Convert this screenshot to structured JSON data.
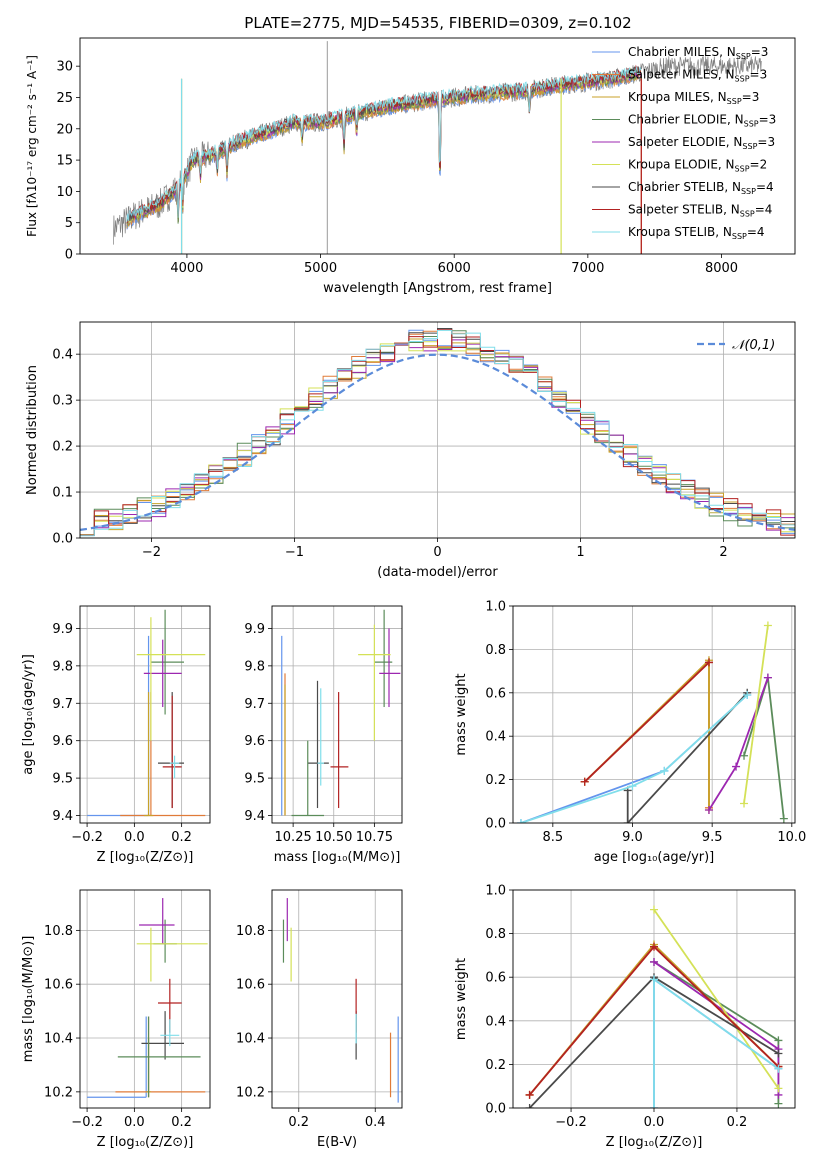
{
  "title": "PLATE=2775, MJD=54535, FIBERID=0309, z=0.102",
  "colors": [
    "#6495ED",
    "#E07B39",
    "#C8A22A",
    "#5B8C5A",
    "#9C27B0",
    "#D4E157",
    "#4A4A4A",
    "#B22222",
    "#80DEEA"
  ],
  "chart_data": [
    {
      "panel": "spectrum",
      "type": "line",
      "xlabel": "wavelength [Angstrom, rest frame]",
      "ylabel": "Flux [fλ10⁻¹⁷ erg cm⁻² s⁻¹ A⁻¹]",
      "xlim": [
        3200,
        8550
      ],
      "ylim": [
        0,
        34.5
      ],
      "xticks": [
        4000,
        5000,
        6000,
        7000,
        8000
      ],
      "yticks": [
        0,
        5,
        10,
        15,
        20,
        25,
        30
      ],
      "grid": false,
      "legend_position": "right",
      "legend": [
        "Chabrier MILES, N_SSP=3",
        "Salpeter MILES, N_SSP=3",
        "Kroupa MILES, N_SSP=3",
        "Chabrier ELODIE, N_SSP=3",
        "Salpeter ELODIE, N_SSP=3",
        "Kroupa ELODIE, N_SSP=2",
        "Chabrier STELIB, N_SSP=4",
        "Salpeter STELIB, N_SSP=4",
        "Kroupa STELIB, N_SSP=4"
      ],
      "continuum": {
        "x": [
          3450,
          3600,
          3800,
          3950,
          4050,
          4200,
          4300,
          4400,
          4600,
          4800,
          5000,
          5200,
          5500,
          5800,
          6000,
          6200,
          6500,
          6800,
          7000,
          7200,
          7400,
          7600,
          8000,
          8300
        ],
        "y": [
          4,
          6,
          8,
          11,
          15,
          16,
          17,
          18,
          19.5,
          21,
          21,
          22,
          23.5,
          24.5,
          25,
          25.5,
          26,
          27,
          27.5,
          28,
          29,
          30,
          30,
          30
        ]
      },
      "data_extent": [
        3450,
        8300
      ],
      "model_extent": [
        3550,
        7400
      ],
      "absorption": [
        {
          "x": 3934,
          "depth": 5
        },
        {
          "x": 3969,
          "depth": 4
        },
        {
          "x": 4101,
          "depth": 3
        },
        {
          "x": 4227,
          "depth": 3
        },
        {
          "x": 4300,
          "depth": 4
        },
        {
          "x": 4861,
          "depth": 3
        },
        {
          "x": 5175,
          "depth": 5
        },
        {
          "x": 5270,
          "depth": 3
        },
        {
          "x": 5893,
          "depth": 14
        },
        {
          "x": 6563,
          "depth": 4
        }
      ],
      "spikes": [
        {
          "x": 5050,
          "y": 34
        }
      ],
      "model_drops": [
        {
          "x": 6800,
          "series": 5
        },
        {
          "x": 7400,
          "series": 1
        },
        {
          "x": 7400,
          "series": 7
        },
        {
          "x": 3960,
          "series": 2
        },
        {
          "x": 3960,
          "series": 8
        }
      ]
    },
    {
      "panel": "residuals",
      "type": "histogram",
      "xlabel": "(data-model)/error",
      "ylabel": "Normed distribution",
      "xlim": [
        -2.5,
        2.5
      ],
      "ylim": [
        0,
        0.47
      ],
      "xticks": [
        -2,
        -1,
        0,
        1,
        2
      ],
      "yticks": [
        0.0,
        0.1,
        0.2,
        0.3,
        0.4
      ],
      "grid": true,
      "legend_position": "top-right",
      "reference_label": "𝒩(0,1)",
      "bin_width": 0.1,
      "offsets": [
        0,
        0.01,
        -0.01,
        0.015,
        -0.015,
        0.02,
        -0.005,
        0.005,
        -0.02
      ]
    },
    {
      "panel": "age_vs_Z",
      "type": "errorbar",
      "xlabel": "Z [log₁₀(Z/Z⊙)]",
      "ylabel": "age  [log₁₀(age/yr)]",
      "xlim": [
        -0.23,
        0.32
      ],
      "ylim": [
        9.38,
        9.96
      ],
      "xticks": [
        -0.2,
        0.0,
        0.2
      ],
      "xticklabels": [
        "−0.2",
        "0.0",
        "0.2"
      ],
      "yticks": [
        9.4,
        9.5,
        9.6,
        9.7,
        9.8,
        9.9
      ],
      "grid": true,
      "points": [
        {
          "x": 0.06,
          "y": 9.4,
          "xerr": [
            0.26,
            0.0
          ],
          "yerr": [
            0.0,
            0.48
          ],
          "series": 0
        },
        {
          "x": 0.07,
          "y": 9.4,
          "xerr": [
            0.13,
            0.23
          ],
          "yerr": [
            0.0,
            0.33
          ],
          "series": 1
        },
        {
          "x": 0.06,
          "y": 9.4,
          "xerr": [
            0.02,
            0.02
          ],
          "yerr": [
            0.0,
            0.33
          ],
          "series": 2
        },
        {
          "x": 0.13,
          "y": 9.81,
          "xerr": [
            0.06,
            0.08
          ],
          "yerr": [
            0.14,
            0.14
          ],
          "series": 3
        },
        {
          "x": 0.12,
          "y": 9.78,
          "xerr": [
            0.08,
            0.08
          ],
          "yerr": [
            0.09,
            0.09
          ],
          "series": 4
        },
        {
          "x": 0.07,
          "y": 9.83,
          "xerr": [
            0.06,
            0.23
          ],
          "yerr": [
            0.23,
            0.1
          ],
          "series": 5
        },
        {
          "x": 0.16,
          "y": 9.54,
          "xerr": [
            0.06,
            0.05
          ],
          "yerr": [
            0.12,
            0.19
          ],
          "series": 6
        },
        {
          "x": 0.16,
          "y": 9.53,
          "xerr": [
            0.04,
            0.04
          ],
          "yerr": [
            0.11,
            0.19
          ],
          "series": 7
        },
        {
          "x": 0.17,
          "y": 9.54,
          "xerr": [
            0.02,
            0.02
          ],
          "yerr": [
            0.04,
            0.02
          ],
          "series": 8
        }
      ]
    },
    {
      "panel": "age_vs_mass",
      "type": "errorbar",
      "xlabel": "mass [log₁₀(M/M⊙)]",
      "ylabel": "",
      "xlim": [
        10.12,
        10.92
      ],
      "ylim": [
        9.38,
        9.96
      ],
      "xticks": [
        10.25,
        10.5,
        10.75
      ],
      "xticklabels": [
        "10.25",
        "10.50",
        "10.75"
      ],
      "yticks": [
        9.4,
        9.5,
        9.6,
        9.7,
        9.8,
        9.9
      ],
      "grid": true,
      "points": [
        {
          "x": 10.18,
          "y": 9.4,
          "xerr": [
            0.0,
            0.0
          ],
          "yerr": [
            0.0,
            0.48
          ],
          "series": 0
        },
        {
          "x": 10.2,
          "y": 9.4,
          "xerr": [
            0.0,
            0.0
          ],
          "yerr": [
            0.0,
            0.38
          ],
          "series": 1
        },
        {
          "x": 10.2,
          "y": 9.4,
          "xerr": [
            0.0,
            0.0
          ],
          "yerr": [
            0.0,
            0.35
          ],
          "series": 2
        },
        {
          "x": 10.81,
          "y": 9.81,
          "xerr": [
            0.06,
            0.05
          ],
          "yerr": [
            0.12,
            0.14
          ],
          "series": 3
        },
        {
          "x": 10.84,
          "y": 9.78,
          "xerr": [
            0.06,
            0.07
          ],
          "yerr": [
            0.09,
            0.12
          ],
          "series": 4
        },
        {
          "x": 10.75,
          "y": 9.83,
          "xerr": [
            0.1,
            0.1
          ],
          "yerr": [
            0.23,
            0.08
          ],
          "series": 5
        },
        {
          "x": 10.4,
          "y": 9.54,
          "xerr": [
            0.06,
            0.07
          ],
          "yerr": [
            0.12,
            0.22
          ],
          "series": 6
        },
        {
          "x": 10.53,
          "y": 9.53,
          "xerr": [
            0.05,
            0.06
          ],
          "yerr": [
            0.11,
            0.2
          ],
          "series": 7
        },
        {
          "x": 10.42,
          "y": 9.54,
          "xerr": [
            0.02,
            0.02
          ],
          "yerr": [
            0.06,
            0.2
          ],
          "series": 8
        },
        {
          "x": 10.34,
          "y": 9.4,
          "xerr": [
            0.1,
            0.1
          ],
          "yerr": [
            0.0,
            0.2
          ],
          "series": 3
        }
      ]
    },
    {
      "panel": "weight_vs_age",
      "type": "line",
      "xlabel": "age  [log₁₀(age/yr)]",
      "ylabel": "mass weight",
      "xlim": [
        8.25,
        10.02
      ],
      "ylim": [
        0,
        1.0
      ],
      "xticks": [
        8.5,
        9.0,
        9.5,
        10.0
      ],
      "xticklabels": [
        "8.5",
        "9.0",
        "9.5",
        "10.0"
      ],
      "yticks": [
        0.0,
        0.2,
        0.4,
        0.6,
        0.8,
        1.0
      ],
      "grid": true,
      "series": [
        {
          "x": [
            8.3,
            9.2,
            9.72
          ],
          "y": [
            0.0,
            0.24,
            0.59
          ],
          "color_index": 0
        },
        {
          "x": [
            8.7,
            9.48,
            9.48
          ],
          "y": [
            0.19,
            0.74,
            0.07
          ],
          "color_index": 1
        },
        {
          "x": [
            8.7,
            9.48,
            9.48
          ],
          "y": [
            0.19,
            0.75,
            0.06
          ],
          "color_index": 2
        },
        {
          "x": [
            9.7,
            9.85,
            9.95
          ],
          "y": [
            0.31,
            0.67,
            0.02
          ],
          "color_index": 3
        },
        {
          "x": [
            9.48,
            9.65,
            9.85
          ],
          "y": [
            0.06,
            0.26,
            0.67
          ],
          "color_index": 4
        },
        {
          "x": [
            9.7,
            9.85
          ],
          "y": [
            0.09,
            0.91
          ],
          "color_index": 5
        },
        {
          "x": [
            8.97,
            8.97,
            9.72
          ],
          "y": [
            0.15,
            0.0,
            0.6
          ],
          "color_index": 6
        },
        {
          "x": [
            8.7,
            9.48
          ],
          "y": [
            0.19,
            0.74
          ],
          "color_index": 7
        },
        {
          "x": [
            8.3,
            9.0,
            9.2,
            9.72
          ],
          "y": [
            0.0,
            0.17,
            0.24,
            0.59
          ],
          "color_index": 8
        }
      ]
    },
    {
      "panel": "mass_vs_Z",
      "type": "errorbar",
      "xlabel": "Z [log₁₀(Z/Z⊙)]",
      "ylabel": "mass [log₁₀(M/M⊙)]",
      "xlim": [
        -0.23,
        0.32
      ],
      "ylim": [
        10.14,
        10.95
      ],
      "xticks": [
        -0.2,
        0.0,
        0.2
      ],
      "xticklabels": [
        "−0.2",
        "0.0",
        "0.2"
      ],
      "yticks": [
        10.2,
        10.4,
        10.6,
        10.8
      ],
      "grid": true,
      "points": [
        {
          "x": 0.05,
          "y": 10.18,
          "xerr": [
            0.25,
            0.0
          ],
          "yerr": [
            0.0,
            0.3
          ],
          "series": 0
        },
        {
          "x": 0.06,
          "y": 10.2,
          "xerr": [
            0.14,
            0.24
          ],
          "yerr": [
            0.02,
            0.28
          ],
          "series": 1
        },
        {
          "x": 0.06,
          "y": 10.2,
          "xerr": [
            0.01,
            0.01
          ],
          "yerr": [
            0.02,
            0.2
          ],
          "series": 2
        },
        {
          "x": 0.13,
          "y": 10.75,
          "xerr": [
            0.05,
            0.05
          ],
          "yerr": [
            0.07,
            0.09
          ],
          "series": 3
        },
        {
          "x": 0.12,
          "y": 10.82,
          "xerr": [
            0.1,
            0.05
          ],
          "yerr": [
            0.07,
            0.1
          ],
          "series": 4
        },
        {
          "x": 0.07,
          "y": 10.75,
          "xerr": [
            0.06,
            0.24
          ],
          "yerr": [
            0.14,
            0.06
          ],
          "series": 5
        },
        {
          "x": 0.13,
          "y": 10.38,
          "xerr": [
            0.1,
            0.08
          ],
          "yerr": [
            0.06,
            0.12
          ],
          "series": 6
        },
        {
          "x": 0.15,
          "y": 10.53,
          "xerr": [
            0.05,
            0.05
          ],
          "yerr": [
            0.11,
            0.09
          ],
          "series": 7
        },
        {
          "x": 0.15,
          "y": 10.41,
          "xerr": [
            0.04,
            0.04
          ],
          "yerr": [
            0.04,
            0.06
          ],
          "series": 8
        },
        {
          "x": 0.06,
          "y": 10.33,
          "xerr": [
            0.13,
            0.22
          ],
          "yerr": [
            0.15,
            0.15
          ],
          "series": 3
        }
      ]
    },
    {
      "panel": "mass_vs_ebv",
      "type": "errorbar",
      "xlabel": "E(B-V)",
      "ylabel": "",
      "xlim": [
        0.13,
        0.47
      ],
      "ylim": [
        10.14,
        10.95
      ],
      "xticks": [
        0.2,
        0.4
      ],
      "xticklabels": [
        "0.2",
        "0.4"
      ],
      "yticks": [
        10.2,
        10.4,
        10.6,
        10.8
      ],
      "grid": true,
      "points": [
        {
          "x": 0.46,
          "y": 10.18,
          "xerr": [
            0,
            0
          ],
          "yerr": [
            0.02,
            0.3
          ],
          "series": 0
        },
        {
          "x": 0.44,
          "y": 10.2,
          "xerr": [
            0,
            0
          ],
          "yerr": [
            0.02,
            0.22
          ],
          "series": 1
        },
        {
          "x": 0.16,
          "y": 10.75,
          "xerr": [
            0,
            0
          ],
          "yerr": [
            0.07,
            0.09
          ],
          "series": 3
        },
        {
          "x": 0.17,
          "y": 10.82,
          "xerr": [
            0,
            0
          ],
          "yerr": [
            0.06,
            0.1
          ],
          "series": 4
        },
        {
          "x": 0.18,
          "y": 10.75,
          "xerr": [
            0,
            0
          ],
          "yerr": [
            0.14,
            0.06
          ],
          "series": 5
        },
        {
          "x": 0.35,
          "y": 10.38,
          "xerr": [
            0,
            0
          ],
          "yerr": [
            0.06,
            0.12
          ],
          "series": 6
        },
        {
          "x": 0.35,
          "y": 10.53,
          "xerr": [
            0,
            0
          ],
          "yerr": [
            0.11,
            0.09
          ],
          "series": 7
        },
        {
          "x": 0.35,
          "y": 10.43,
          "xerr": [
            0,
            0
          ],
          "yerr": [
            0.05,
            0.06
          ],
          "series": 8
        }
      ]
    },
    {
      "panel": "weight_vs_Z",
      "type": "line",
      "xlabel": "Z [log₁₀(Z/Z⊙)]",
      "ylabel": "mass weight",
      "xlim": [
        -0.34,
        0.34
      ],
      "ylim": [
        0,
        1.0
      ],
      "xticks": [
        -0.2,
        0.0,
        0.2
      ],
      "xticklabels": [
        "−0.2",
        "0.0",
        "0.2"
      ],
      "yticks": [
        0.0,
        0.2,
        0.4,
        0.6,
        0.8,
        1.0
      ],
      "grid": true,
      "series": [
        {
          "x": [
            0.0,
            0.0,
            0.3
          ],
          "y": [
            0.0,
            0.59,
            0.18
          ],
          "color_index": 0
        },
        {
          "x": [
            -0.3,
            0.0,
            0.3
          ],
          "y": [
            0.06,
            0.74,
            0.19
          ],
          "color_index": 1
        },
        {
          "x": [
            -0.3,
            0.0,
            0.3
          ],
          "y": [
            0.06,
            0.75,
            0.19
          ],
          "color_index": 2
        },
        {
          "x": [
            0.0,
            0.3,
            0.3
          ],
          "y": [
            0.67,
            0.31,
            0.02
          ],
          "color_index": 3
        },
        {
          "x": [
            0.0,
            0.3,
            0.3
          ],
          "y": [
            0.67,
            0.27,
            0.06
          ],
          "color_index": 4
        },
        {
          "x": [
            0.0,
            0.3
          ],
          "y": [
            0.91,
            0.09
          ],
          "color_index": 5
        },
        {
          "x": [
            -0.3,
            0.0,
            0.3
          ],
          "y": [
            0.0,
            0.6,
            0.25
          ],
          "color_index": 6
        },
        {
          "x": [
            -0.3,
            0.0,
            0.3
          ],
          "y": [
            0.06,
            0.74,
            0.19
          ],
          "color_index": 7
        },
        {
          "x": [
            0.0,
            0.0,
            0.3
          ],
          "y": [
            0.0,
            0.59,
            0.18
          ],
          "color_index": 8
        }
      ]
    }
  ]
}
